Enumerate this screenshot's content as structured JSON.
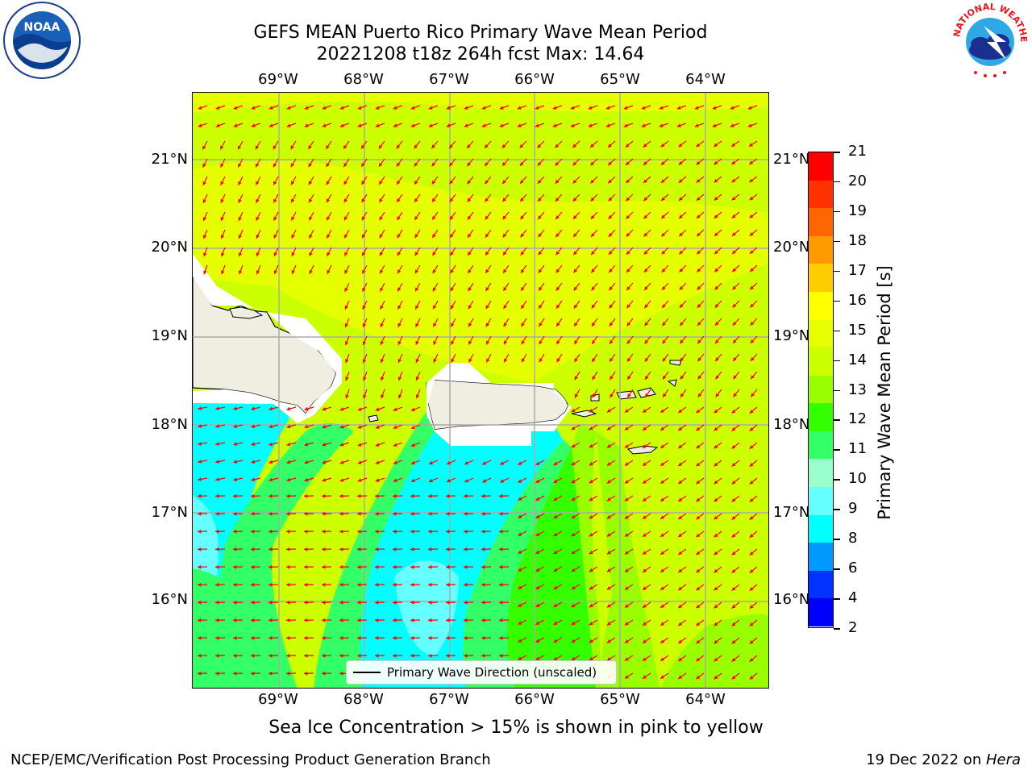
{
  "title_line1": "GEFS MEAN Puerto Rico Primary Wave Mean Period",
  "title_line2": "20221208 t18z 264h fcst   Max: 14.64",
  "lon_ticks": [
    "69°W",
    "68°W",
    "67°W",
    "66°W",
    "65°W",
    "64°W"
  ],
  "lat_ticks": [
    "21°N",
    "20°N",
    "19°N",
    "18°N",
    "17°N",
    "16°N"
  ],
  "legend_label": "Primary Wave Direction (unscaled)",
  "colorbar": {
    "label": "Primary Wave Mean Period [s]",
    "ticks": [
      "21",
      "20",
      "19",
      "18",
      "17",
      "16",
      "15",
      "14",
      "13",
      "12",
      "11",
      "10",
      "9",
      "8",
      "6",
      "4",
      "2"
    ],
    "colors": [
      "#ff0000",
      "#ff3300",
      "#ff6600",
      "#ff9900",
      "#ffcc00",
      "#ffff00",
      "#e6ff00",
      "#ccff00",
      "#99ff00",
      "#33ff00",
      "#33ff66",
      "#99ffcc",
      "#66ffff",
      "#00ffff",
      "#0099ff",
      "#0033ff",
      "#0000ff"
    ]
  },
  "subtitle": "Sea Ice Concentration > 15% is shown in pink to yellow",
  "footer_left": "NCEP/EMC/Verification Post Processing Product Generation Branch",
  "footer_date": "19 Dec 2022 on ",
  "footer_machine": "Hera",
  "logos": {
    "left": "NOAA",
    "right_top": "NATIONAL WEATHER SERVICE"
  },
  "arrow_color": "#ff0000",
  "land_color": "#efeee0"
}
